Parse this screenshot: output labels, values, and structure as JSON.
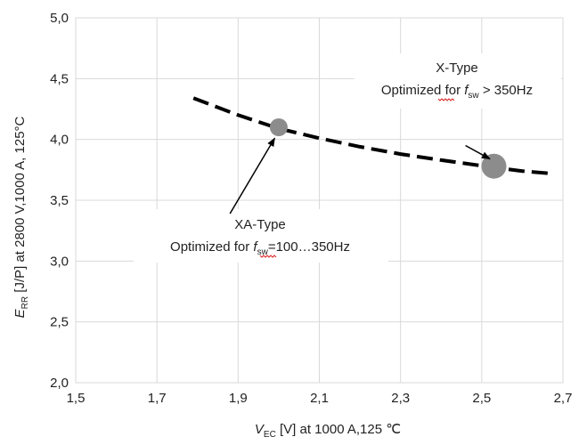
{
  "chart_data": {
    "type": "scatter",
    "xlim": [
      1.5,
      2.7
    ],
    "ylim": [
      2.0,
      5.0
    ],
    "x_ticks": [
      "1,5",
      "1,7",
      "1,9",
      "2,1",
      "2,3",
      "2,5",
      "2,7"
    ],
    "y_ticks": [
      "2,0",
      "2,5",
      "3,0",
      "3,5",
      "4,0",
      "4,5",
      "5,0"
    ],
    "grid": true,
    "xlabel": {
      "pre": "V",
      "sub": "EC",
      "post": " [V] at 1000 A,125 ℃"
    },
    "ylabel": {
      "pre": "E",
      "sub": "RR",
      "post": "  [J/P] at 2800 V,1000 A, 125°C"
    },
    "trend_line": {
      "style": "dashed",
      "color": "#000000",
      "x": [
        1.79,
        1.9,
        2.0,
        2.1,
        2.2,
        2.3,
        2.4,
        2.53,
        2.6,
        2.67
      ],
      "y": [
        4.34,
        4.2,
        4.09,
        4.01,
        3.94,
        3.88,
        3.83,
        3.77,
        3.74,
        3.72
      ]
    },
    "points": [
      {
        "x": 2.0,
        "y": 4.1,
        "size": "small",
        "color": "#8c8c8c"
      },
      {
        "x": 2.53,
        "y": 3.78,
        "size": "large",
        "color": "#8c8c8c"
      }
    ],
    "annotations": [
      {
        "line1": "X-Type",
        "line2_pre": "Optimized for ",
        "line2_var": "f",
        "line2_sub": "sw",
        "line2_post": " > 350Hz",
        "arrow_from": [
          2.46,
          3.95
        ],
        "arrow_to": [
          2.52,
          3.84
        ]
      },
      {
        "line1": "XA-Type",
        "line2_pre": "Optimized for ",
        "line2_var": "f",
        "line2_sub": "sw",
        "line2_post": "=100…350Hz",
        "arrow_from": [
          1.88,
          3.39
        ],
        "arrow_to": [
          1.99,
          4.01
        ]
      }
    ]
  }
}
